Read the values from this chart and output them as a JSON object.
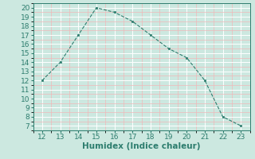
{
  "x": [
    12,
    13,
    14,
    15,
    16,
    17,
    18,
    19,
    20,
    21,
    22,
    23
  ],
  "y": [
    12,
    14,
    17,
    20,
    19.5,
    18.5,
    17,
    15.5,
    14.5,
    12,
    8,
    7
  ],
  "xlabel": "Humidex (Indice chaleur)",
  "ylim": [
    6.5,
    20.5
  ],
  "xlim": [
    11.5,
    23.5
  ],
  "yticks": [
    7,
    8,
    9,
    10,
    11,
    12,
    13,
    14,
    15,
    16,
    17,
    18,
    19,
    20
  ],
  "xticks": [
    12,
    13,
    14,
    15,
    16,
    17,
    18,
    19,
    20,
    21,
    22,
    23
  ],
  "line_color": "#2d7d6e",
  "marker_color": "#2d7d6e",
  "bg_color": "#cce8e0",
  "grid_major_color": "#ffffff",
  "grid_minor_color": "#f0b8b8",
  "xlabel_fontsize": 7.5,
  "tick_fontsize": 6.5,
  "tick_color": "#2d7d6e"
}
